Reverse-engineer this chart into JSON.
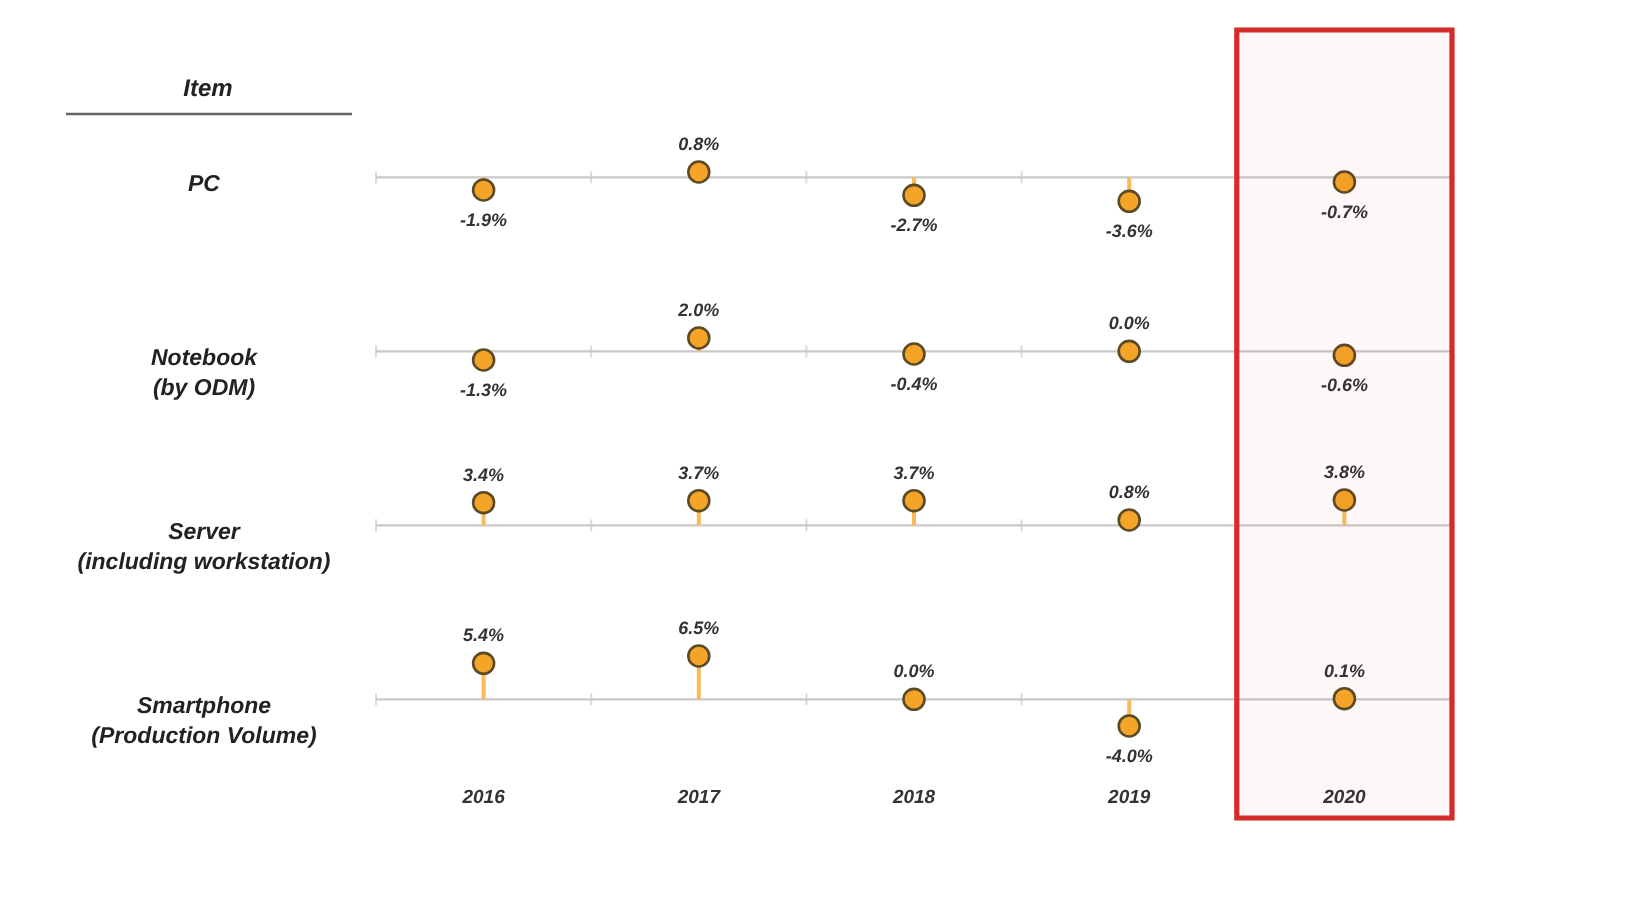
{
  "chart_data": [
    {
      "type": "lollipop",
      "ylabel": "PC",
      "annotations": [
        "Item"
      ],
      "categories": [
        "2016",
        "2017",
        "2018",
        "2019",
        "2020"
      ],
      "values": [
        -1.9,
        0.8,
        -2.7,
        -3.6,
        -0.7
      ],
      "value_labels": [
        "-1.9%",
        "0.8%",
        "-2.7%",
        "-3.6%",
        "-0.7%"
      ],
      "color": "#f4a426",
      "marker": "circle",
      "tick_labels": false
    },
    {
      "type": "lollipop",
      "ylabel": "Notebook\n(by ODM)",
      "categories": [
        "2016",
        "2017",
        "2018",
        "2019",
        "2020"
      ],
      "values": [
        -1.3,
        2.0,
        -0.4,
        0.0,
        -0.6
      ],
      "value_labels": [
        "-1.3%",
        "2.0%",
        "-0.4%",
        "0.0%",
        "-0.6%"
      ],
      "color": "#f4a426",
      "marker": "circle",
      "tick_labels": false
    },
    {
      "type": "lollipop",
      "ylabel": "Server\n(including workstation)",
      "categories": [
        "2016",
        "2017",
        "2018",
        "2019",
        "2020"
      ],
      "values": [
        3.4,
        3.7,
        3.7,
        0.8,
        3.8
      ],
      "value_labels": [
        "3.4%",
        "3.7%",
        "3.7%",
        "0.8%",
        "3.8%"
      ],
      "color": "#f4a426",
      "marker": "circle",
      "tick_labels": false
    },
    {
      "type": "lollipop",
      "ylabel": "Smartphone\n(Production Volume)",
      "categories": [
        "2016",
        "2017",
        "2018",
        "2019",
        "2020"
      ],
      "values": [
        5.4,
        6.5,
        0.0,
        -4.0,
        0.1
      ],
      "value_labels": [
        "5.4%",
        "6.5%",
        "0.0%",
        "-4.0%",
        "0.1%"
      ],
      "color": "#f4a426",
      "marker": "circle",
      "tick_labels": "x",
      "bands": [
        {
          "axis": "x",
          "from": "2020",
          "to": "2020",
          "color": "#d42a2a"
        }
      ]
    }
  ]
}
